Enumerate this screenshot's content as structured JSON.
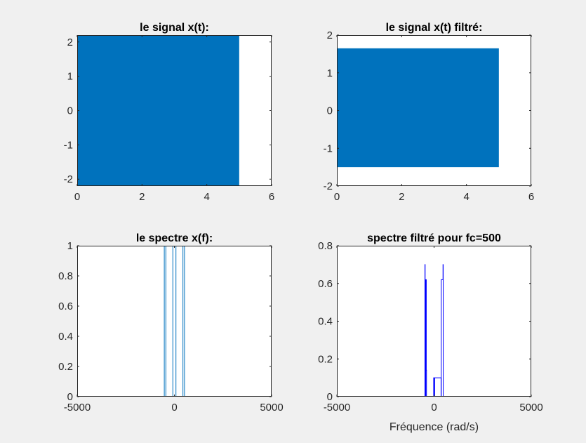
{
  "figure": {
    "background": "#f0f0f0"
  },
  "colors": {
    "area": "#0072bd",
    "line1": "#0072bd",
    "line2": "#0000ff",
    "axis": "#262626"
  },
  "chart_data": [
    {
      "type": "area",
      "title": "le signal x(t):",
      "xlabel": "",
      "ylabel": "",
      "xlim": [
        0,
        6
      ],
      "ylim": [
        -2.2,
        2.2
      ],
      "xticks": [
        0,
        2,
        4,
        6
      ],
      "yticks": [
        -2,
        -1,
        0,
        1,
        2
      ],
      "series": [
        {
          "x": [
            0,
            5
          ],
          "ymin": -2.2,
          "ymax": 2.2
        }
      ]
    },
    {
      "type": "area",
      "title": "le signal x(t) filtré:",
      "xlabel": "",
      "ylabel": "",
      "xlim": [
        0,
        6
      ],
      "ylim": [
        -2,
        2
      ],
      "xticks": [
        0,
        2,
        4,
        6
      ],
      "yticks": [
        -2,
        -1,
        0,
        1,
        2
      ],
      "series": [
        {
          "x": [
            0,
            5
          ],
          "ymin": -1.5,
          "ymax": 1.65
        }
      ]
    },
    {
      "type": "line",
      "title": "le spectre x(f):",
      "xlabel": "",
      "ylabel": "",
      "xlim": [
        -5000,
        5000
      ],
      "ylim": [
        0,
        1
      ],
      "xticks": [
        -5000,
        0,
        5000
      ],
      "yticks": [
        0,
        0.2,
        0.4,
        0.6,
        0.8,
        1
      ],
      "series": [
        {
          "x": [
            -5000,
            -520,
            -520,
            -440,
            -440,
            -80,
            -80,
            80,
            80,
            440,
            440,
            520,
            520,
            5000
          ],
          "y": [
            0,
            0,
            1.05,
            1.05,
            0,
            0,
            1.05,
            1.05,
            0,
            0,
            1.05,
            1.05,
            0,
            0
          ]
        }
      ]
    },
    {
      "type": "line",
      "title": "spectre filtré pour fc=500",
      "xlabel": "Fréquence (rad/s)",
      "ylabel": "",
      "xlim": [
        -5000,
        5000
      ],
      "ylim": [
        0,
        0.8
      ],
      "xticks": [
        -5000,
        0,
        5000
      ],
      "yticks": [
        0,
        0.2,
        0.4,
        0.6,
        0.8
      ],
      "series": [
        {
          "x": [
            -5000,
            -470,
            -470,
            -460,
            -460,
            -430,
            -430,
            -400,
            -400,
            -390,
            -390,
            -20,
            -20,
            0,
            0,
            30,
            30,
            360,
            360,
            370,
            370,
            460,
            460,
            470,
            470,
            5000
          ],
          "y": [
            0,
            0,
            0.7,
            0.7,
            0,
            0,
            0.62,
            0.62,
            0.14,
            0.14,
            0,
            0,
            0.1,
            0.1,
            0,
            0,
            0.1,
            0.1,
            0,
            0,
            0.62,
            0.62,
            0.7,
            0.7,
            0,
            0
          ]
        }
      ]
    }
  ]
}
